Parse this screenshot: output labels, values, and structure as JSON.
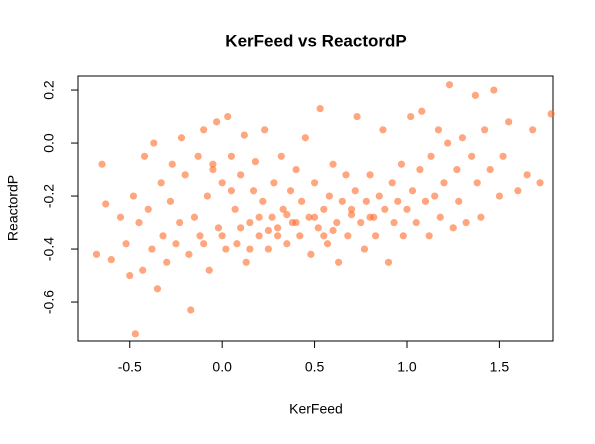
{
  "chart_data": {
    "type": "scatter",
    "title": "KerFeed vs ReactordP",
    "x_label": "KerFeed",
    "y_label": "ReactordP",
    "color": "#ff6a2a",
    "xlim": [
      -0.78,
      1.79
    ],
    "ylim": [
      -0.747,
      0.253
    ],
    "xticks": [
      -0.5,
      {
        "value": 0,
        "label": "0.0"
      },
      0.5,
      {
        "value": 1,
        "label": "1.0"
      },
      1.5
    ],
    "yticks": [
      -0.6,
      -0.4,
      -0.2,
      {
        "value": 0,
        "label": "0.0"
      },
      0.2
    ],
    "x": [
      -0.68,
      -0.65,
      -0.63,
      -0.6,
      -0.55,
      -0.52,
      -0.5,
      -0.48,
      -0.47,
      -0.45,
      -0.43,
      -0.42,
      -0.4,
      -0.38,
      -0.37,
      -0.35,
      -0.33,
      -0.32,
      -0.3,
      -0.28,
      -0.27,
      -0.25,
      -0.23,
      -0.22,
      -0.2,
      -0.18,
      -0.17,
      -0.15,
      -0.13,
      -0.12,
      -0.1,
      -0.08,
      -0.07,
      -0.05,
      -0.03,
      -0.02,
      0.0,
      0.02,
      0.03,
      0.05,
      0.07,
      0.08,
      0.1,
      0.12,
      0.13,
      0.15,
      0.17,
      0.18,
      0.2,
      0.22,
      0.23,
      0.25,
      0.27,
      0.28,
      0.3,
      0.32,
      0.33,
      0.35,
      0.37,
      0.38,
      0.4,
      0.42,
      0.43,
      0.45,
      0.47,
      0.48,
      0.5,
      0.52,
      0.53,
      0.55,
      0.57,
      0.58,
      0.6,
      0.62,
      0.63,
      0.65,
      0.67,
      0.68,
      0.7,
      0.72,
      0.73,
      0.75,
      0.77,
      0.78,
      0.8,
      0.82,
      0.83,
      0.85,
      0.87,
      0.88,
      0.9,
      0.92,
      0.93,
      0.95,
      0.97,
      0.98,
      1.0,
      1.02,
      1.03,
      1.05,
      1.07,
      1.08,
      1.1,
      1.12,
      1.13,
      1.15,
      1.17,
      1.18,
      1.2,
      1.22,
      1.23,
      1.25,
      1.27,
      1.28,
      1.3,
      1.32,
      1.35,
      1.37,
      1.38,
      1.4,
      1.42,
      1.45,
      1.47,
      1.5,
      1.52,
      1.55,
      1.6,
      1.65,
      1.68,
      1.72,
      1.78,
      0.1,
      0.2,
      0.3,
      0.4,
      0.5,
      0.6,
      0.7,
      0.8,
      0.15,
      0.35,
      0.55,
      0.25,
      -0.1,
      0.0,
      -0.05,
      0.05
    ],
    "y": [
      -0.42,
      -0.08,
      -0.23,
      -0.44,
      -0.28,
      -0.38,
      -0.5,
      -0.2,
      -0.72,
      -0.3,
      -0.48,
      -0.05,
      -0.25,
      -0.4,
      0.0,
      -0.55,
      -0.15,
      -0.35,
      -0.45,
      -0.22,
      -0.08,
      -0.38,
      -0.3,
      0.02,
      -0.12,
      -0.42,
      -0.63,
      -0.28,
      -0.05,
      -0.35,
      0.05,
      -0.2,
      -0.48,
      -0.1,
      0.08,
      -0.32,
      -0.15,
      -0.4,
      0.1,
      -0.05,
      -0.25,
      -0.38,
      -0.12,
      0.03,
      -0.45,
      -0.3,
      -0.18,
      -0.07,
      -0.35,
      -0.22,
      0.05,
      -0.4,
      -0.28,
      -0.15,
      -0.32,
      -0.05,
      -0.25,
      -0.38,
      -0.18,
      -0.3,
      -0.1,
      -0.35,
      -0.22,
      0.02,
      -0.28,
      -0.42,
      -0.15,
      -0.32,
      0.13,
      -0.25,
      -0.38,
      -0.2,
      -0.08,
      -0.3,
      -0.45,
      -0.22,
      -0.12,
      -0.35,
      -0.27,
      -0.18,
      0.1,
      -0.3,
      -0.4,
      -0.22,
      -0.12,
      -0.28,
      -0.35,
      -0.2,
      0.05,
      -0.25,
      -0.45,
      -0.15,
      -0.3,
      -0.22,
      -0.08,
      -0.35,
      -0.25,
      0.1,
      -0.18,
      -0.3,
      -0.1,
      0.12,
      -0.22,
      -0.35,
      -0.05,
      -0.2,
      0.05,
      -0.28,
      -0.15,
      0.0,
      0.22,
      -0.32,
      -0.1,
      -0.22,
      0.02,
      -0.3,
      -0.05,
      0.18,
      -0.15,
      -0.28,
      0.05,
      -0.1,
      0.2,
      -0.2,
      -0.05,
      0.08,
      -0.18,
      -0.12,
      0.05,
      -0.15,
      0.11,
      -0.32,
      -0.28,
      -0.35,
      -0.3,
      -0.28,
      -0.33,
      -0.25,
      -0.28,
      -0.4,
      -0.27,
      -0.35,
      -0.33,
      -0.38,
      -0.35,
      -0.08,
      -0.18
    ]
  }
}
